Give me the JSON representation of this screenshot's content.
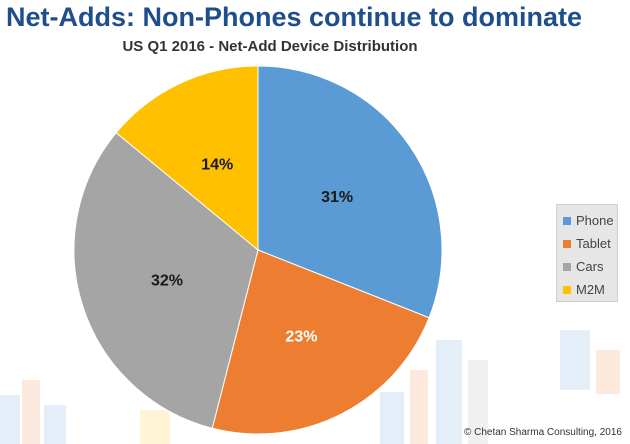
{
  "chart_data": {
    "type": "pie",
    "title": "Net-Adds: Non-Phones continue to dominate",
    "subtitle": "US Q1 2016 - Net-Add Device Distribution",
    "categories": [
      "Phone",
      "Tablet",
      "Cars",
      "M2M"
    ],
    "values": [
      31,
      23,
      32,
      14
    ],
    "data_labels": [
      "31%",
      "23%",
      "32%",
      "14%"
    ],
    "colors": [
      "#5b9bd5",
      "#ed7d31",
      "#a5a5a5",
      "#ffc000"
    ],
    "label_colors": [
      "#1a1a1a",
      "#ffffff",
      "#1a1a1a",
      "#1a1a1a"
    ],
    "legend_position": "right",
    "start_angle_deg": 0,
    "direction": "clockwise"
  },
  "footer": {
    "copyright": "© Chetan Sharma Consulting, 2016"
  }
}
